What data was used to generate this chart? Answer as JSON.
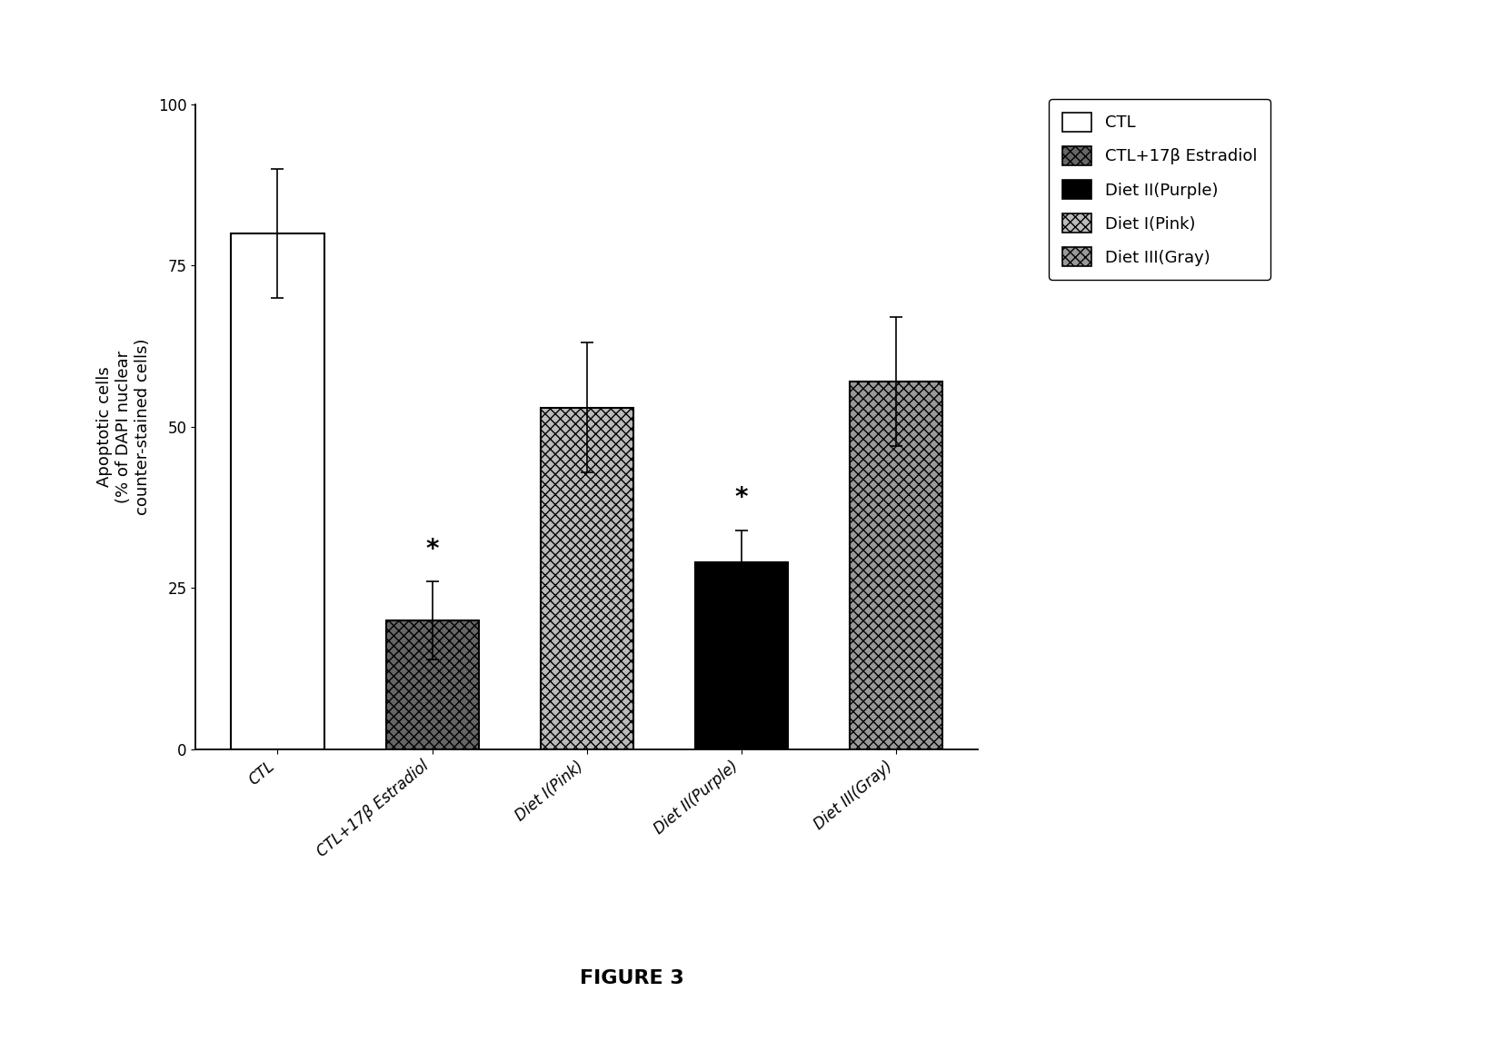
{
  "categories": [
    "CTL",
    "CTL+17β Estradiol",
    "Diet I(Pink)",
    "Diet II(Purple)",
    "Diet III(Gray)"
  ],
  "values": [
    80,
    20,
    53,
    29,
    57
  ],
  "errors": [
    10,
    6,
    10,
    5,
    10
  ],
  "bar_styles": [
    "white",
    "dark_dot",
    "light_dot",
    "black",
    "gray_dot"
  ],
  "significance": [
    false,
    true,
    false,
    true,
    false
  ],
  "ylabel": "Apoptotic cells\n(% of DAPI nuclear\ncounter-stained cells)",
  "ylim": [
    0,
    100
  ],
  "yticks": [
    0,
    25,
    50,
    75,
    100
  ],
  "figure_label": "FIGURE 3",
  "legend_labels": [
    "CTL",
    "CTL+17β Estradiol",
    "Diet II(Purple)",
    "Diet I(Pink)",
    "Diet III(Gray)"
  ],
  "background_color": "#ffffff",
  "x_tick_fontsize": 12,
  "y_tick_fontsize": 12,
  "ylabel_fontsize": 13,
  "figure_label_fontsize": 16,
  "legend_fontsize": 13
}
